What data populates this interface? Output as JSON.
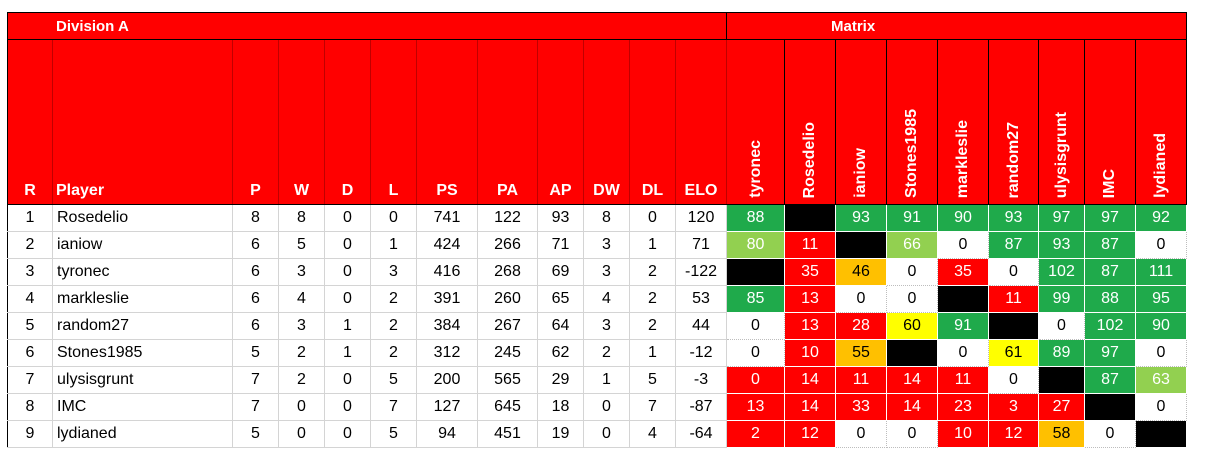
{
  "division_title": "Division A",
  "matrix_title": "Matrix",
  "headers": [
    "R",
    "Player",
    "P",
    "W",
    "D",
    "L",
    "PS",
    "PA",
    "AP",
    "DW",
    "DL",
    "ELO"
  ],
  "matrix_headers": [
    "tyronec",
    "Rosedelio",
    "ianiow",
    "Stones1985",
    "markleslie",
    "random27",
    "ulysisgrunt",
    "IMC",
    "lydianed"
  ],
  "colors": {
    "header_red": "#ff0000",
    "dark_green": "#1faa4b",
    "light_green": "#92d050",
    "red": "#ff0000",
    "orange": "#ffc000",
    "yellow": "#ffff00",
    "black": "#000000",
    "white": "#ffffff"
  },
  "rows": [
    {
      "stats": [
        "1",
        "Rosedelio",
        "8",
        "8",
        "0",
        "0",
        "741",
        "122",
        "93",
        "8",
        "0",
        "120"
      ],
      "matrix": [
        {
          "v": "88",
          "c": "darkgreen"
        },
        {
          "v": "",
          "c": "black"
        },
        {
          "v": "93",
          "c": "darkgreen"
        },
        {
          "v": "91",
          "c": "darkgreen"
        },
        {
          "v": "90",
          "c": "darkgreen"
        },
        {
          "v": "93",
          "c": "darkgreen"
        },
        {
          "v": "97",
          "c": "darkgreen"
        },
        {
          "v": "97",
          "c": "darkgreen"
        },
        {
          "v": "92",
          "c": "darkgreen"
        }
      ]
    },
    {
      "stats": [
        "2",
        "ianiow",
        "6",
        "5",
        "0",
        "1",
        "424",
        "266",
        "71",
        "3",
        "1",
        "71"
      ],
      "matrix": [
        {
          "v": "80",
          "c": "lightgreen"
        },
        {
          "v": "11",
          "c": "red"
        },
        {
          "v": "",
          "c": "black"
        },
        {
          "v": "66",
          "c": "lightgreen"
        },
        {
          "v": "0",
          "c": "white"
        },
        {
          "v": "87",
          "c": "darkgreen"
        },
        {
          "v": "93",
          "c": "darkgreen"
        },
        {
          "v": "87",
          "c": "darkgreen"
        },
        {
          "v": "0",
          "c": "white"
        }
      ]
    },
    {
      "stats": [
        "3",
        "tyronec",
        "6",
        "3",
        "0",
        "3",
        "416",
        "268",
        "69",
        "3",
        "2",
        "-122"
      ],
      "matrix": [
        {
          "v": "",
          "c": "black"
        },
        {
          "v": "35",
          "c": "red"
        },
        {
          "v": "46",
          "c": "orange"
        },
        {
          "v": "0",
          "c": "white"
        },
        {
          "v": "35",
          "c": "red"
        },
        {
          "v": "0",
          "c": "white"
        },
        {
          "v": "102",
          "c": "darkgreen"
        },
        {
          "v": "87",
          "c": "darkgreen"
        },
        {
          "v": "111",
          "c": "darkgreen"
        }
      ]
    },
    {
      "stats": [
        "4",
        "markleslie",
        "6",
        "4",
        "0",
        "2",
        "391",
        "260",
        "65",
        "4",
        "2",
        "53"
      ],
      "matrix": [
        {
          "v": "85",
          "c": "darkgreen"
        },
        {
          "v": "13",
          "c": "red"
        },
        {
          "v": "0",
          "c": "white"
        },
        {
          "v": "0",
          "c": "white"
        },
        {
          "v": "",
          "c": "black"
        },
        {
          "v": "11",
          "c": "red"
        },
        {
          "v": "99",
          "c": "darkgreen"
        },
        {
          "v": "88",
          "c": "darkgreen"
        },
        {
          "v": "95",
          "c": "darkgreen"
        }
      ]
    },
    {
      "stats": [
        "5",
        "random27",
        "6",
        "3",
        "1",
        "2",
        "384",
        "267",
        "64",
        "3",
        "2",
        "44"
      ],
      "matrix": [
        {
          "v": "0",
          "c": "white"
        },
        {
          "v": "13",
          "c": "red"
        },
        {
          "v": "28",
          "c": "red"
        },
        {
          "v": "60",
          "c": "yellow"
        },
        {
          "v": "91",
          "c": "darkgreen"
        },
        {
          "v": "",
          "c": "black"
        },
        {
          "v": "0",
          "c": "white"
        },
        {
          "v": "102",
          "c": "darkgreen"
        },
        {
          "v": "90",
          "c": "darkgreen"
        }
      ]
    },
    {
      "stats": [
        "6",
        "Stones1985",
        "5",
        "2",
        "1",
        "2",
        "312",
        "245",
        "62",
        "2",
        "1",
        "-12"
      ],
      "matrix": [
        {
          "v": "0",
          "c": "white"
        },
        {
          "v": "10",
          "c": "red"
        },
        {
          "v": "55",
          "c": "orange"
        },
        {
          "v": "",
          "c": "black"
        },
        {
          "v": "0",
          "c": "white"
        },
        {
          "v": "61",
          "c": "yellow"
        },
        {
          "v": "89",
          "c": "darkgreen"
        },
        {
          "v": "97",
          "c": "darkgreen"
        },
        {
          "v": "0",
          "c": "white"
        }
      ]
    },
    {
      "stats": [
        "7",
        "ulysisgrunt",
        "7",
        "2",
        "0",
        "5",
        "200",
        "565",
        "29",
        "1",
        "5",
        "-3"
      ],
      "matrix": [
        {
          "v": "0",
          "c": "red"
        },
        {
          "v": "14",
          "c": "red"
        },
        {
          "v": "11",
          "c": "red"
        },
        {
          "v": "14",
          "c": "red"
        },
        {
          "v": "11",
          "c": "red"
        },
        {
          "v": "0",
          "c": "white"
        },
        {
          "v": "",
          "c": "black"
        },
        {
          "v": "87",
          "c": "darkgreen"
        },
        {
          "v": "63",
          "c": "lightgreen"
        }
      ]
    },
    {
      "stats": [
        "8",
        "IMC",
        "7",
        "0",
        "0",
        "7",
        "127",
        "645",
        "18",
        "0",
        "7",
        "-87"
      ],
      "matrix": [
        {
          "v": "13",
          "c": "red"
        },
        {
          "v": "14",
          "c": "red"
        },
        {
          "v": "33",
          "c": "red"
        },
        {
          "v": "14",
          "c": "red"
        },
        {
          "v": "23",
          "c": "red"
        },
        {
          "v": "3",
          "c": "red"
        },
        {
          "v": "27",
          "c": "red"
        },
        {
          "v": "",
          "c": "black"
        },
        {
          "v": "0",
          "c": "white"
        }
      ]
    },
    {
      "stats": [
        "9",
        "lydianed",
        "5",
        "0",
        "0",
        "5",
        "94",
        "451",
        "19",
        "0",
        "4",
        "-64"
      ],
      "matrix": [
        {
          "v": "2",
          "c": "red"
        },
        {
          "v": "12",
          "c": "red"
        },
        {
          "v": "0",
          "c": "white"
        },
        {
          "v": "0",
          "c": "white"
        },
        {
          "v": "10",
          "c": "red"
        },
        {
          "v": "12",
          "c": "red"
        },
        {
          "v": "58",
          "c": "orange"
        },
        {
          "v": "0",
          "c": "white"
        },
        {
          "v": "",
          "c": "black"
        }
      ]
    }
  ]
}
